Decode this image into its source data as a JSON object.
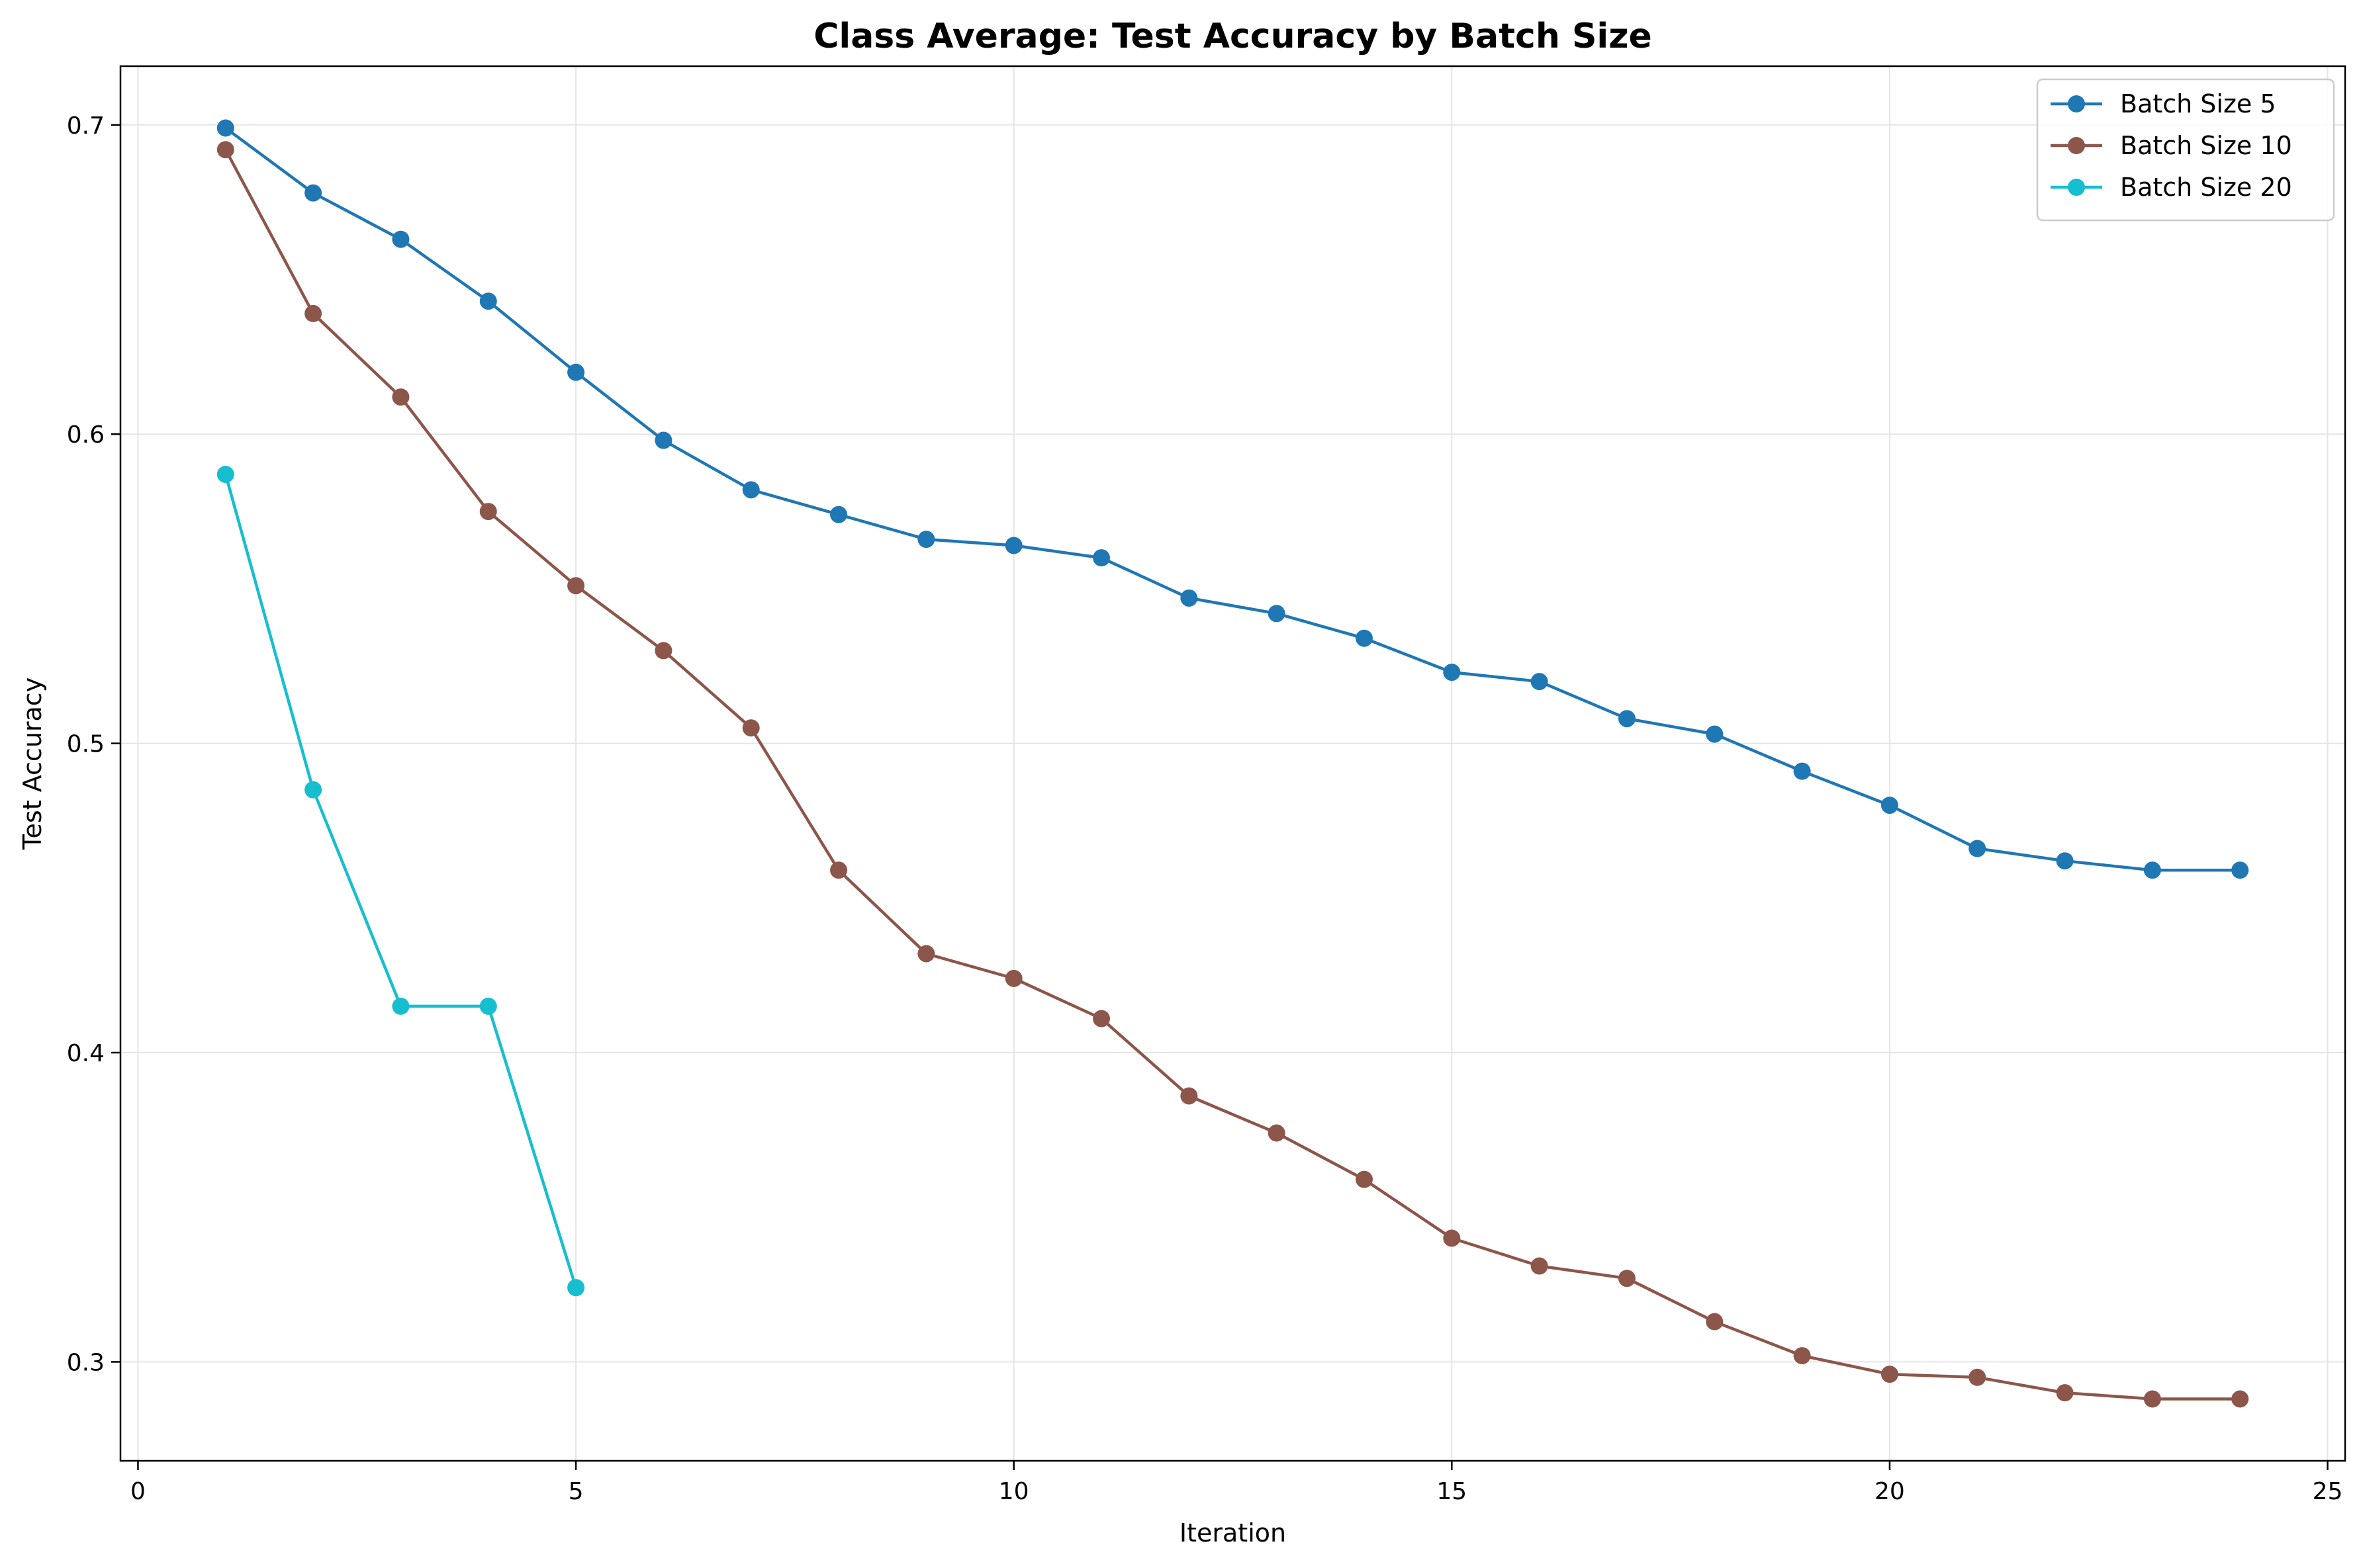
{
  "chart_data": {
    "type": "line",
    "title": "Class Average: Test Accuracy by Batch Size",
    "xlabel": "Iteration",
    "ylabel": "Test Accuracy",
    "xlim": [
      -0.2,
      25.2
    ],
    "ylim": [
      0.268,
      0.719
    ],
    "xticks": [
      0,
      5,
      10,
      15,
      20,
      25
    ],
    "yticks": [
      0.3,
      0.4,
      0.5,
      0.6,
      0.7
    ],
    "grid": true,
    "legend_position": "top-right",
    "series": [
      {
        "name": "Batch Size 5",
        "color": "#1f77b4",
        "x": [
          1,
          2,
          3,
          4,
          5,
          6,
          7,
          8,
          9,
          10,
          11,
          12,
          13,
          14,
          15,
          16,
          17,
          18,
          19,
          20,
          21,
          22,
          23,
          24
        ],
        "y": [
          0.699,
          0.678,
          0.663,
          0.643,
          0.62,
          0.598,
          0.582,
          0.574,
          0.566,
          0.564,
          0.56,
          0.547,
          0.542,
          0.534,
          0.523,
          0.52,
          0.508,
          0.503,
          0.491,
          0.48,
          0.466,
          0.462,
          0.459,
          0.459
        ]
      },
      {
        "name": "Batch Size 10",
        "color": "#8c564b",
        "x": [
          1,
          2,
          3,
          4,
          5,
          6,
          7,
          8,
          9,
          10,
          11,
          12,
          13,
          14,
          15,
          16,
          17,
          18,
          19,
          20,
          21,
          22,
          23,
          24
        ],
        "y": [
          0.692,
          0.639,
          0.612,
          0.575,
          0.551,
          0.53,
          0.505,
          0.459,
          0.432,
          0.424,
          0.411,
          0.386,
          0.374,
          0.359,
          0.34,
          0.331,
          0.327,
          0.313,
          0.302,
          0.296,
          0.295,
          0.29,
          0.288,
          0.288
        ]
      },
      {
        "name": "Batch Size 20",
        "color": "#17becf",
        "x": [
          1,
          2,
          3,
          4,
          5
        ],
        "y": [
          0.587,
          0.485,
          0.415,
          0.415,
          0.324
        ]
      }
    ]
  }
}
